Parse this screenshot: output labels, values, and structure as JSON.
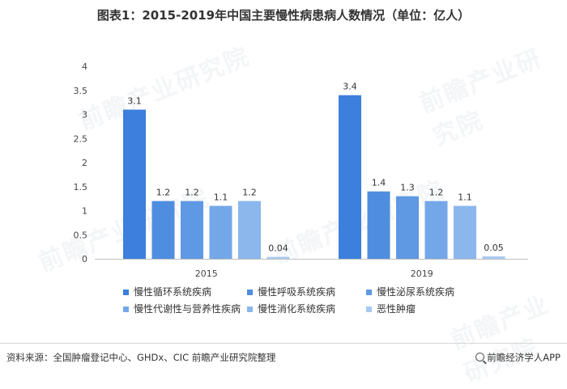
{
  "title": "图表1：2015-2019年中国主要慢性病患病人数情况（单位：亿人）",
  "source": "资料来源：全国肿瘤登记中心、GHDx、CIC 前瞻产业研究院整理",
  "brand": "前瞻经济学人APP",
  "watermark": "前瞻产业研究院",
  "chart_data": {
    "type": "bar",
    "categories": [
      "2015",
      "2019"
    ],
    "ylim": [
      0,
      4
    ],
    "yticks": [
      "0",
      "0.5",
      "1",
      "1.5",
      "2",
      "2.5",
      "3",
      "3.5",
      "4"
    ],
    "grid": false,
    "legend_position": "bottom",
    "series": [
      {
        "name": "慢性循环系统疾病",
        "color": "#3c7fdc",
        "values": [
          3.1,
          3.4
        ],
        "labels": [
          "3.1",
          "3.4"
        ]
      },
      {
        "name": "慢性呼吸系统疾病",
        "color": "#4f8de0",
        "values": [
          1.2,
          1.4
        ],
        "labels": [
          "1.2",
          "1.4"
        ]
      },
      {
        "name": "慢性泌尿系统疾病",
        "color": "#5f98e3",
        "values": [
          1.2,
          1.3
        ],
        "labels": [
          "1.2",
          "1.3"
        ]
      },
      {
        "name": "慢性代谢性与营养性疾病",
        "color": "#74a7e8",
        "values": [
          1.1,
          1.2
        ],
        "labels": [
          "1.1",
          "1.2"
        ]
      },
      {
        "name": "慢性消化系统疾病",
        "color": "#8bb7ec",
        "values": [
          1.2,
          1.1
        ],
        "labels": [
          "1.2",
          "1.1"
        ]
      },
      {
        "name": "恶性肿瘤",
        "color": "#a8c9f1",
        "values": [
          0.04,
          0.05
        ],
        "labels": [
          "0.04",
          "0.05"
        ]
      }
    ]
  }
}
